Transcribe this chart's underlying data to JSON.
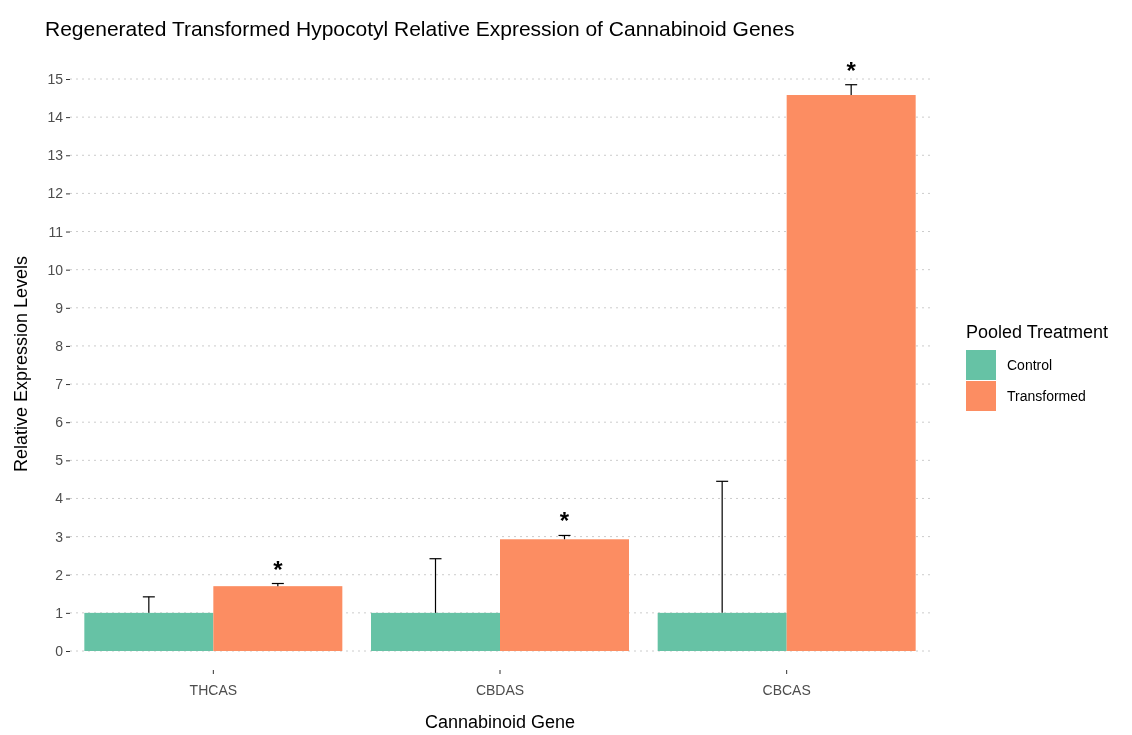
{
  "chart_data": {
    "type": "bar",
    "title": "Regenerated Transformed Hypocotyl Relative Expression of Cannabinoid Genes",
    "xlabel": "Cannabinoid Gene",
    "ylabel": "Relative Expression Levels",
    "legend_title": "Pooled Treatment",
    "categories": [
      "THCAS",
      "CBDAS",
      "CBCAS"
    ],
    "series": [
      {
        "name": "Control",
        "color": "#66c2a5",
        "values": [
          1,
          1,
          1
        ],
        "errors": [
          [
            1,
            1.42
          ],
          [
            1,
            2.42
          ],
          [
            1,
            4.45
          ]
        ]
      },
      {
        "name": "Transformed",
        "color": "#fc8d62",
        "values": [
          1.7,
          2.93,
          14.58
        ],
        "errors": [
          [
            1.7,
            1.77
          ],
          [
            2.93,
            3.03
          ],
          [
            14.58,
            14.85
          ]
        ]
      }
    ],
    "ylim": [
      0,
      15
    ],
    "yticks": [
      0,
      1,
      2,
      3,
      4,
      5,
      6,
      7,
      8,
      9,
      10,
      11,
      12,
      13,
      14,
      15
    ],
    "grid": "y",
    "legend": "right",
    "annotations": [
      "*",
      "*",
      "*"
    ]
  }
}
